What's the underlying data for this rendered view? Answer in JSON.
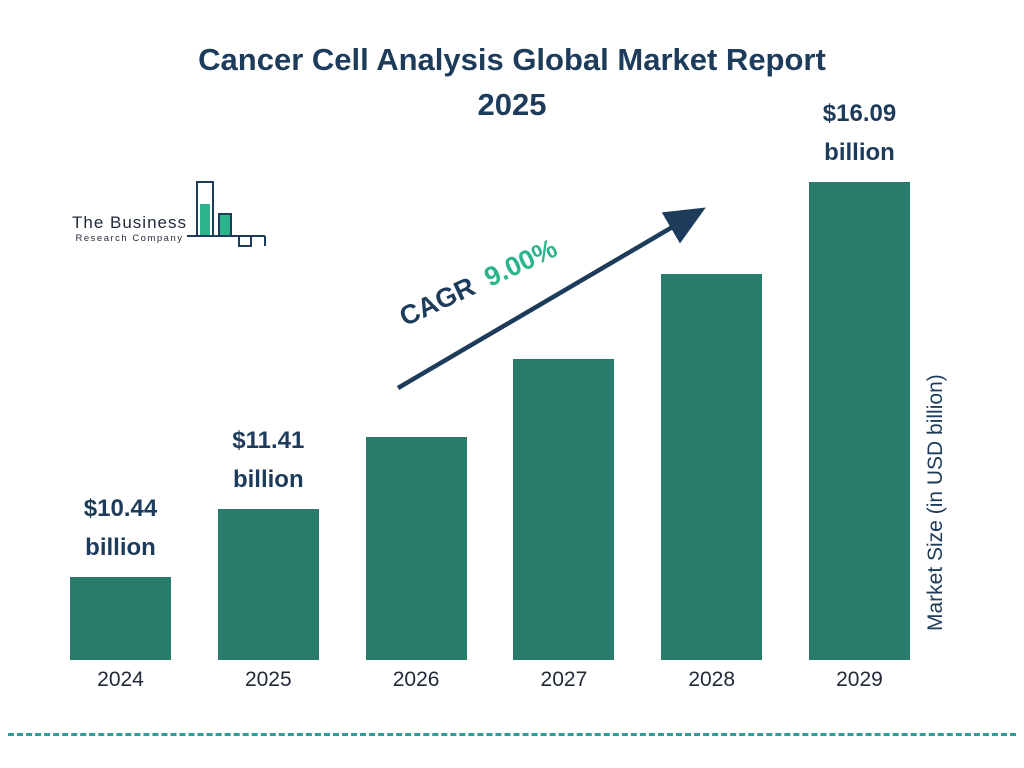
{
  "page": {
    "title_line1": "Cancer Cell Analysis Global Market Report",
    "title_line2": "2025"
  },
  "logo": {
    "line1": "The Business",
    "line2": "Research Company"
  },
  "cagr": {
    "prefix": "CAGR",
    "value": "9.00%"
  },
  "axis": {
    "ylabel": "Market Size (in USD billion)"
  },
  "colors": {
    "bar": "#277c6b",
    "navy": "#1d3b5a",
    "green": "#2cb58c",
    "dashed": "#2aa198"
  },
  "chart_data": {
    "type": "bar",
    "title": "Cancer Cell Analysis Global Market Report 2025",
    "categories": [
      "2024",
      "2025",
      "2026",
      "2027",
      "2028",
      "2029"
    ],
    "values": [
      10.44,
      11.41,
      12.44,
      13.56,
      14.78,
      16.09
    ],
    "value_labels": [
      "$10.44 billion",
      "$11.41 billion",
      null,
      null,
      null,
      "$16.09 billion"
    ],
    "ylabel": "Market Size (in USD billion)",
    "cagr": "9.00%",
    "legend": "none",
    "grid": false,
    "bar_color": "#277c6b"
  }
}
